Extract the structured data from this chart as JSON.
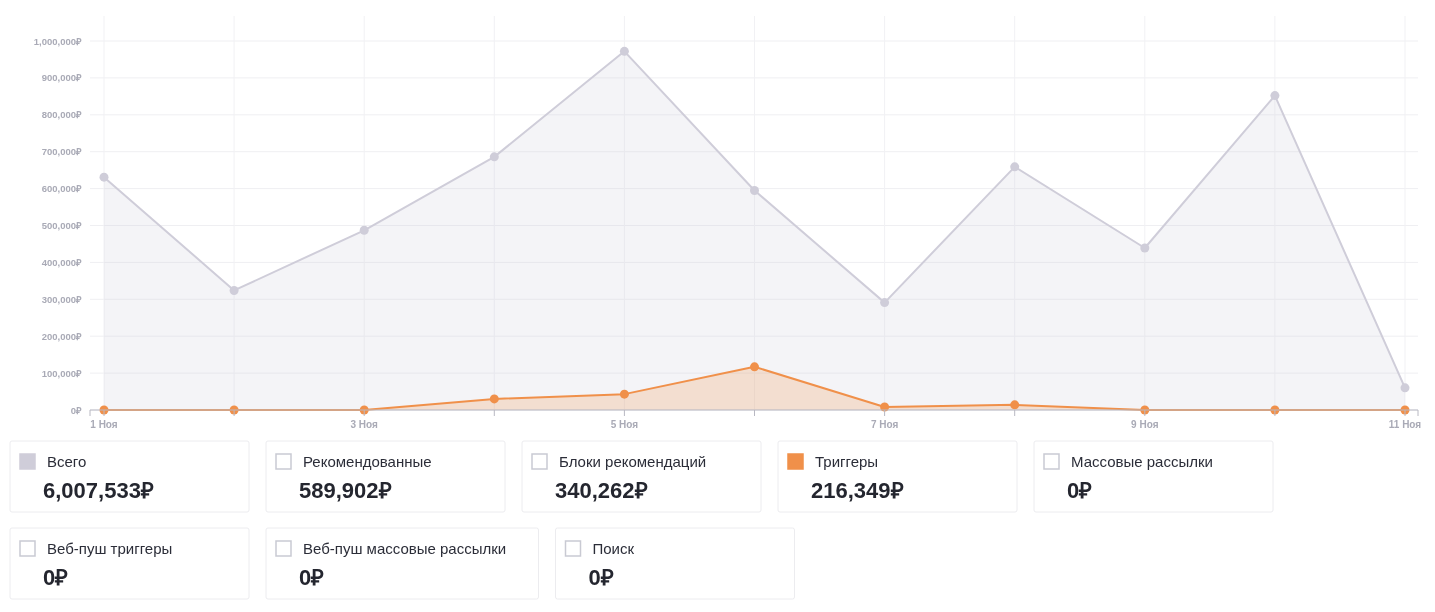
{
  "chart_data": {
    "type": "area",
    "categories": [
      "1 Ноя",
      null,
      "3 Ноя",
      null,
      "5 Ноя",
      null,
      "7 Ноя",
      null,
      "9 Ноя",
      null,
      "11 Ноя"
    ],
    "series": [
      {
        "name": "Всего",
        "color": "#cfcdd9",
        "values": [
          631000,
          324000,
          487000,
          686000,
          972000,
          595000,
          291000,
          659000,
          439000,
          852000,
          60000
        ]
      },
      {
        "name": "Рекомендованные",
        "values": [
          null,
          null,
          null,
          null,
          null,
          null,
          null,
          null,
          null,
          null,
          null
        ]
      },
      {
        "name": "Блоки рекомендаций",
        "values": [
          null,
          null,
          null,
          null,
          null,
          null,
          null,
          null,
          null,
          null,
          null
        ]
      },
      {
        "name": "Триггеры",
        "color": "#f0904a",
        "values": [
          0,
          0,
          0,
          30000,
          43000,
          117000,
          8000,
          14000,
          0,
          0,
          0
        ]
      },
      {
        "name": "Массовые рассылки",
        "values": [
          null,
          null,
          null,
          null,
          null,
          null,
          null,
          null,
          null,
          null,
          null
        ]
      },
      {
        "name": "Веб-пуш триггеры",
        "values": [
          null,
          null,
          null,
          null,
          null,
          null,
          null,
          null,
          null,
          null,
          null
        ]
      },
      {
        "name": "Веб-пуш массовые рассылки",
        "values": [
          null,
          null,
          null,
          null,
          null,
          null,
          null,
          null,
          null,
          null,
          null
        ]
      },
      {
        "name": "Поиск",
        "values": [
          null,
          null,
          null,
          null,
          null,
          null,
          null,
          null,
          null,
          null,
          null
        ]
      }
    ],
    "annotations": [
      "6,007,533₽",
      "589,902₽",
      "340,262₽",
      "216,349₽",
      "0₽",
      "0₽",
      "0₽",
      "0₽"
    ],
    "ylim": [
      0,
      1000000
    ],
    "yticks": [
      {
        "value": 0,
        "label": "0₽"
      },
      {
        "value": 100000,
        "label": "100,000₽"
      },
      {
        "value": 200000,
        "label": "200,000₽"
      },
      {
        "value": 300000,
        "label": "300,000₽"
      },
      {
        "value": 400000,
        "label": "400,000₽"
      },
      {
        "value": 500000,
        "label": "500,000₽"
      },
      {
        "value": 600000,
        "label": "600,000₽"
      },
      {
        "value": 700000,
        "label": "700,000₽"
      },
      {
        "value": 800000,
        "label": "800,000₽"
      },
      {
        "value": 900000,
        "label": "900,000₽"
      },
      {
        "value": 1000000,
        "label": "1,000,000₽"
      }
    ],
    "grid": true,
    "legend": "bottom",
    "marker": "circle",
    "line_style": "solid"
  }
}
